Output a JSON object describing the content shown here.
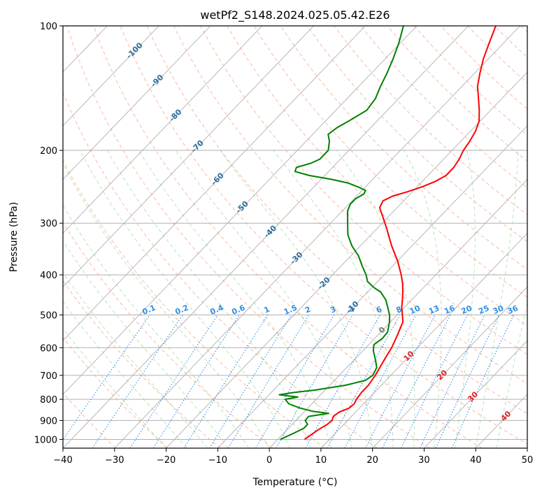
{
  "chart_data": {
    "type": "skew-t",
    "title": "wetPf2_S148.2024.025.05.42.E26",
    "xlabel": "Temperature (°C)",
    "ylabel": "Pressure (hPa)",
    "xlim": [
      -40,
      50
    ],
    "ylim": [
      1050,
      100
    ],
    "y_scale": "log",
    "x_ticks": [
      -40,
      -30,
      -20,
      -10,
      0,
      10,
      20,
      30,
      40,
      50
    ],
    "x_tick_labels": [
      "−40",
      "−30",
      "−20",
      "−10",
      "0",
      "10",
      "20",
      "30",
      "40",
      "50"
    ],
    "y_ticks": [
      1000,
      900,
      800,
      700,
      600,
      500,
      400,
      300,
      200,
      100
    ],
    "y_tick_labels": [
      "1000",
      "900",
      "800",
      "700",
      "600",
      "500",
      "400",
      "300",
      "200",
      "100"
    ],
    "grid": true,
    "isotherm_labels": [
      {
        "value": "-100",
        "p": 115,
        "T": -100
      },
      {
        "value": "-90",
        "p": 136,
        "T": -90
      },
      {
        "value": "-80",
        "p": 165,
        "T": -80
      },
      {
        "value": "-70",
        "p": 196,
        "T": -70
      },
      {
        "value": "-60",
        "p": 235,
        "T": -60
      },
      {
        "value": "-50",
        "p": 275,
        "T": -50
      },
      {
        "value": "-40",
        "p": 315,
        "T": -40
      },
      {
        "value": "-30",
        "p": 365,
        "T": -30
      },
      {
        "value": "-20",
        "p": 420,
        "T": -20
      },
      {
        "value": "-10",
        "p": 480,
        "T": -10
      },
      {
        "value": "0",
        "p": 545,
        "T": 0
      },
      {
        "value": "10",
        "p": 630,
        "T": 10
      },
      {
        "value": "20",
        "p": 700,
        "T": 20
      },
      {
        "value": "30",
        "p": 790,
        "T": 30
      },
      {
        "value": "40",
        "p": 880,
        "T": 40
      }
    ],
    "mixing_ratio_labels": [
      "0.1",
      "0.2",
      "0.4",
      "0.6",
      "1",
      "1.5",
      "2",
      "3",
      "4",
      "6",
      "8",
      "10",
      "13",
      "16",
      "20",
      "25",
      "30",
      "36"
    ],
    "series": [
      {
        "color": "#ff0000",
        "points": [
          [
            1000,
            5.2
          ],
          [
            950,
            6.0
          ],
          [
            920,
            6.8
          ],
          [
            900,
            7.0
          ],
          [
            880,
            6.5
          ],
          [
            860,
            6.8
          ],
          [
            840,
            8.0
          ],
          [
            820,
            8.2
          ],
          [
            800,
            7.8
          ],
          [
            770,
            7.5
          ],
          [
            740,
            7.5
          ],
          [
            700,
            7.0
          ],
          [
            650,
            6.0
          ],
          [
            600,
            5.0
          ],
          [
            560,
            3.8
          ],
          [
            520,
            2.4
          ],
          [
            500,
            1.0
          ],
          [
            480,
            -0.5
          ],
          [
            460,
            -1.8
          ],
          [
            440,
            -3.2
          ],
          [
            420,
            -4.8
          ],
          [
            400,
            -6.7
          ],
          [
            370,
            -10.0
          ],
          [
            340,
            -14.0
          ],
          [
            310,
            -18.0
          ],
          [
            290,
            -21.0
          ],
          [
            275,
            -23.4
          ],
          [
            265,
            -24.0
          ],
          [
            258,
            -23.0
          ],
          [
            252,
            -21.0
          ],
          [
            245,
            -19.0
          ],
          [
            238,
            -17.5
          ],
          [
            230,
            -16.5
          ],
          [
            220,
            -16.5
          ],
          [
            210,
            -17.0
          ],
          [
            200,
            -17.8
          ],
          [
            190,
            -18.3
          ],
          [
            180,
            -19.0
          ],
          [
            170,
            -20.2
          ],
          [
            160,
            -22.2
          ],
          [
            150,
            -24.5
          ],
          [
            140,
            -27.0
          ],
          [
            130,
            -29.0
          ],
          [
            120,
            -31.0
          ],
          [
            110,
            -32.8
          ],
          [
            100,
            -34.7
          ]
        ]
      },
      {
        "color": "#008000",
        "points": [
          [
            1000,
            0.5
          ],
          [
            970,
            1.8
          ],
          [
            940,
            3.0
          ],
          [
            920,
            3.0
          ],
          [
            900,
            1.8
          ],
          [
            880,
            1.7
          ],
          [
            865,
            5.0
          ],
          [
            855,
            1.5
          ],
          [
            840,
            -1.5
          ],
          [
            820,
            -4.5
          ],
          [
            800,
            -6.0
          ],
          [
            790,
            -4.0
          ],
          [
            780,
            -8.0
          ],
          [
            770,
            -5.5
          ],
          [
            760,
            -2.0
          ],
          [
            740,
            3.0
          ],
          [
            720,
            6.0
          ],
          [
            700,
            6.5
          ],
          [
            670,
            5.8
          ],
          [
            640,
            4.0
          ],
          [
            610,
            2.0
          ],
          [
            590,
            1.0
          ],
          [
            570,
            1.5
          ],
          [
            550,
            1.3
          ],
          [
            520,
            -0.2
          ],
          [
            500,
            -1.5
          ],
          [
            480,
            -3.2
          ],
          [
            460,
            -5.0
          ],
          [
            440,
            -7.5
          ],
          [
            430,
            -9.5
          ],
          [
            415,
            -12.0
          ],
          [
            400,
            -13.5
          ],
          [
            380,
            -16.0
          ],
          [
            360,
            -18.5
          ],
          [
            340,
            -21.7
          ],
          [
            320,
            -24.5
          ],
          [
            300,
            -26.7
          ],
          [
            280,
            -29.0
          ],
          [
            270,
            -29.7
          ],
          [
            262,
            -29.7
          ],
          [
            255,
            -29.0
          ],
          [
            250,
            -29.3
          ],
          [
            245,
            -31.5
          ],
          [
            240,
            -34.0
          ],
          [
            235,
            -38.0
          ],
          [
            230,
            -43.0
          ],
          [
            225,
            -46.5
          ],
          [
            220,
            -47.0
          ],
          [
            215,
            -45.0
          ],
          [
            210,
            -44.0
          ],
          [
            200,
            -44.0
          ],
          [
            190,
            -45.5
          ],
          [
            183,
            -47.0
          ],
          [
            176,
            -46.5
          ],
          [
            170,
            -45.5
          ],
          [
            160,
            -44.0
          ],
          [
            150,
            -44.5
          ],
          [
            140,
            -45.8
          ],
          [
            130,
            -47.0
          ],
          [
            120,
            -48.5
          ],
          [
            110,
            -50.3
          ],
          [
            100,
            -52.6
          ]
        ]
      }
    ]
  }
}
